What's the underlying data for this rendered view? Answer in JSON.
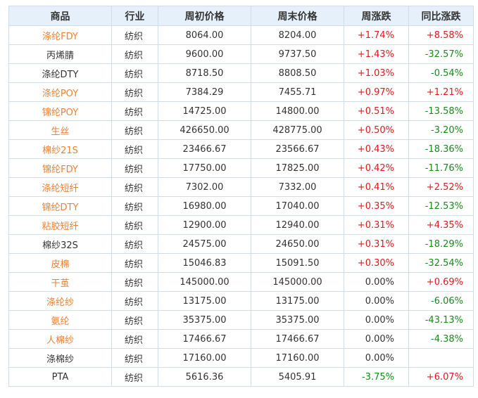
{
  "headers": [
    "商品",
    "行业",
    "周初价格",
    "周末价格",
    "周涨跌",
    "同比涨跌"
  ],
  "colors": {
    "link": "#e8823a",
    "up": "#e5161c",
    "down": "#178a1a",
    "header_bg": "#e6f0fa"
  },
  "rows": [
    {
      "name": "涤纶FDY",
      "name_style": "orange",
      "industry": "纺织",
      "open": "8064.00",
      "close": "8204.00",
      "wk": "+1.74%",
      "wk_style": "up",
      "yoy": "+8.58%",
      "yoy_style": "up"
    },
    {
      "name": "丙烯腈",
      "name_style": "black",
      "industry": "纺织",
      "open": "9600.00",
      "close": "9737.50",
      "wk": "+1.43%",
      "wk_style": "up",
      "yoy": "-32.57%",
      "yoy_style": "down"
    },
    {
      "name": "涤纶DTY",
      "name_style": "black",
      "industry": "纺织",
      "open": "8718.50",
      "close": "8808.50",
      "wk": "+1.03%",
      "wk_style": "up",
      "yoy": "-0.54%",
      "yoy_style": "down"
    },
    {
      "name": "涤纶POY",
      "name_style": "orange",
      "industry": "纺织",
      "open": "7384.29",
      "close": "7455.71",
      "wk": "+0.97%",
      "wk_style": "up",
      "yoy": "+1.21%",
      "yoy_style": "up"
    },
    {
      "name": "锦纶POY",
      "name_style": "orange",
      "industry": "纺织",
      "open": "14725.00",
      "close": "14800.00",
      "wk": "+0.51%",
      "wk_style": "up",
      "yoy": "-13.58%",
      "yoy_style": "down"
    },
    {
      "name": "生丝",
      "name_style": "orange",
      "industry": "纺织",
      "open": "426650.00",
      "close": "428775.00",
      "wk": "+0.50%",
      "wk_style": "up",
      "yoy": "-3.20%",
      "yoy_style": "down"
    },
    {
      "name": "棉纱21S",
      "name_style": "orange",
      "industry": "纺织",
      "open": "23466.67",
      "close": "23566.67",
      "wk": "+0.43%",
      "wk_style": "up",
      "yoy": "-18.36%",
      "yoy_style": "down"
    },
    {
      "name": "锦纶FDY",
      "name_style": "orange",
      "industry": "纺织",
      "open": "17750.00",
      "close": "17825.00",
      "wk": "+0.42%",
      "wk_style": "up",
      "yoy": "-11.76%",
      "yoy_style": "down"
    },
    {
      "name": "涤纶短纤",
      "name_style": "orange",
      "industry": "纺织",
      "open": "7302.00",
      "close": "7332.00",
      "wk": "+0.41%",
      "wk_style": "up",
      "yoy": "+2.52%",
      "yoy_style": "up"
    },
    {
      "name": "锦纶DTY",
      "name_style": "orange",
      "industry": "纺织",
      "open": "16980.00",
      "close": "17040.00",
      "wk": "+0.35%",
      "wk_style": "up",
      "yoy": "-12.53%",
      "yoy_style": "down"
    },
    {
      "name": "粘胶短纤",
      "name_style": "orange",
      "industry": "纺织",
      "open": "12900.00",
      "close": "12940.00",
      "wk": "+0.31%",
      "wk_style": "up",
      "yoy": "+4.35%",
      "yoy_style": "up"
    },
    {
      "name": "棉纱32S",
      "name_style": "black",
      "industry": "纺织",
      "open": "24575.00",
      "close": "24650.00",
      "wk": "+0.31%",
      "wk_style": "up",
      "yoy": "-18.29%",
      "yoy_style": "down"
    },
    {
      "name": "皮棉",
      "name_style": "orange",
      "industry": "纺织",
      "open": "15046.83",
      "close": "15091.50",
      "wk": "+0.30%",
      "wk_style": "up",
      "yoy": "-32.54%",
      "yoy_style": "down"
    },
    {
      "name": "干茧",
      "name_style": "orange",
      "industry": "纺织",
      "open": "145000.00",
      "close": "145000.00",
      "wk": "0.00%",
      "wk_style": "flat",
      "yoy": "+0.69%",
      "yoy_style": "up"
    },
    {
      "name": "涤纶纱",
      "name_style": "orange",
      "industry": "纺织",
      "open": "13175.00",
      "close": "13175.00",
      "wk": "0.00%",
      "wk_style": "flat",
      "yoy": "-6.06%",
      "yoy_style": "down"
    },
    {
      "name": "氨纶",
      "name_style": "orange",
      "industry": "纺织",
      "open": "35375.00",
      "close": "35375.00",
      "wk": "0.00%",
      "wk_style": "flat",
      "yoy": "-43.13%",
      "yoy_style": "down"
    },
    {
      "name": "人棉纱",
      "name_style": "orange",
      "industry": "纺织",
      "open": "17466.67",
      "close": "17466.67",
      "wk": "0.00%",
      "wk_style": "flat",
      "yoy": "-4.38%",
      "yoy_style": "down"
    },
    {
      "name": "涤棉纱",
      "name_style": "black",
      "industry": "纺织",
      "open": "17160.00",
      "close": "17160.00",
      "wk": "0.00%",
      "wk_style": "flat",
      "yoy": "",
      "yoy_style": "flat"
    },
    {
      "name": "PTA",
      "name_style": "black",
      "industry": "纺织",
      "open": "5616.36",
      "close": "5405.91",
      "wk": "-3.75%",
      "wk_style": "down",
      "yoy": "+6.07%",
      "yoy_style": "up"
    }
  ]
}
